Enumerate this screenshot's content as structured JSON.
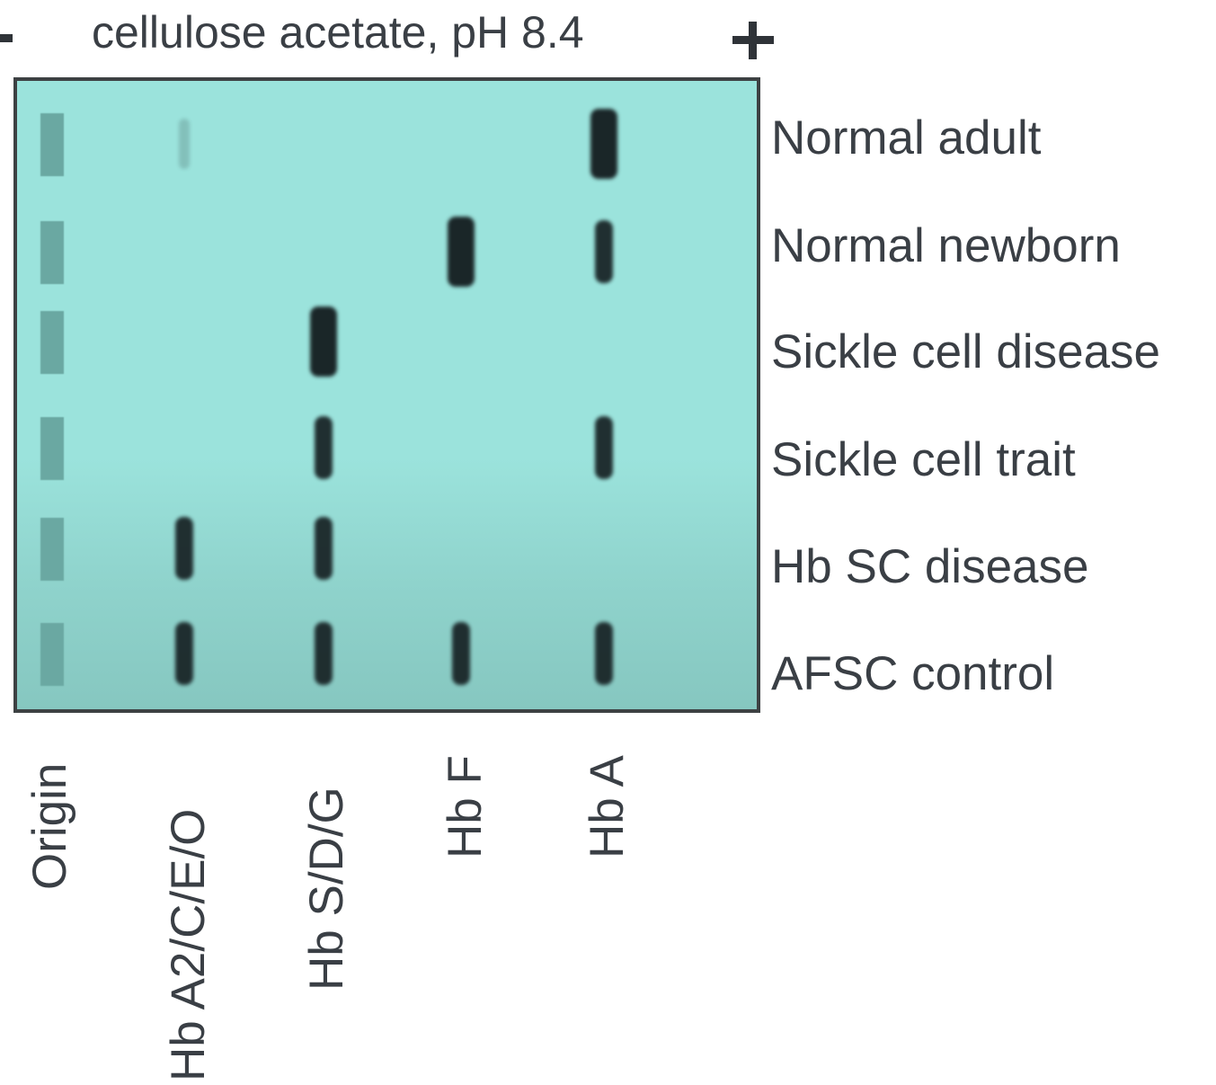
{
  "header": {
    "title": "cellulose acetate, pH 8.4",
    "cathode_symbol": "-",
    "anode_symbol": "+"
  },
  "colors": {
    "gel": "#9be3dc",
    "band": "#1a2628",
    "origin": "#6aa8a2",
    "border": "#3d4143"
  },
  "lanes": [
    "Origin",
    "Hb A2/C/E/O",
    "Hb S/D/G",
    "Hb F",
    "Hb A"
  ],
  "samples": [
    "Normal adult",
    "Normal newborn",
    "Sickle cell disease",
    "Sickle cell trait",
    "Hb SC disease",
    "AFSC control"
  ],
  "bands": [
    {
      "sample": "Normal adult",
      "lane": "Hb A2/C/E/O",
      "intensity": "faint"
    },
    {
      "sample": "Normal adult",
      "lane": "Hb A",
      "intensity": "strong"
    },
    {
      "sample": "Normal newborn",
      "lane": "Hb F",
      "intensity": "strong"
    },
    {
      "sample": "Normal newborn",
      "lane": "Hb A",
      "intensity": "medium"
    },
    {
      "sample": "Sickle cell disease",
      "lane": "Hb S/D/G",
      "intensity": "strong"
    },
    {
      "sample": "Sickle cell trait",
      "lane": "Hb S/D/G",
      "intensity": "medium"
    },
    {
      "sample": "Sickle cell trait",
      "lane": "Hb A",
      "intensity": "medium"
    },
    {
      "sample": "Hb SC disease",
      "lane": "Hb A2/C/E/O",
      "intensity": "medium"
    },
    {
      "sample": "Hb SC disease",
      "lane": "Hb S/D/G",
      "intensity": "medium"
    },
    {
      "sample": "AFSC control",
      "lane": "Hb A2/C/E/O",
      "intensity": "medium"
    },
    {
      "sample": "AFSC control",
      "lane": "Hb S/D/G",
      "intensity": "medium"
    },
    {
      "sample": "AFSC control",
      "lane": "Hb F",
      "intensity": "medium"
    },
    {
      "sample": "AFSC control",
      "lane": "Hb A",
      "intensity": "medium"
    }
  ]
}
